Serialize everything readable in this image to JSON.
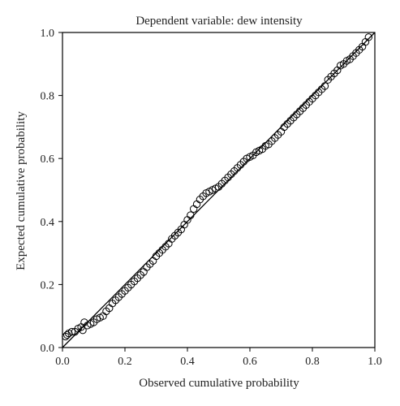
{
  "chart_data": {
    "type": "scatter",
    "title": "Dependent variable: dew intensity",
    "xlabel": "Observed cumulative probability",
    "ylabel": "Expected cumulative probability",
    "xlim": [
      0,
      1
    ],
    "ylim": [
      0,
      1
    ],
    "xticks": [
      "0.0",
      "0.2",
      "0.4",
      "0.6",
      "0.8",
      "1.0"
    ],
    "yticks": [
      "0.0",
      "0.2",
      "0.4",
      "0.6",
      "0.8",
      "1.0"
    ],
    "grid": false,
    "reference_line": [
      [
        0,
        0
      ],
      [
        1,
        1
      ]
    ],
    "series": [
      {
        "marker": "open-circle",
        "color": "#000000",
        "points": [
          [
            0.01,
            0.035
          ],
          [
            0.015,
            0.04
          ],
          [
            0.02,
            0.045
          ],
          [
            0.03,
            0.05
          ],
          [
            0.04,
            0.05
          ],
          [
            0.05,
            0.06
          ],
          [
            0.06,
            0.065
          ],
          [
            0.065,
            0.055
          ],
          [
            0.07,
            0.08
          ],
          [
            0.08,
            0.07
          ],
          [
            0.09,
            0.075
          ],
          [
            0.1,
            0.08
          ],
          [
            0.11,
            0.09
          ],
          [
            0.12,
            0.095
          ],
          [
            0.13,
            0.1
          ],
          [
            0.14,
            0.115
          ],
          [
            0.15,
            0.125
          ],
          [
            0.16,
            0.14
          ],
          [
            0.17,
            0.15
          ],
          [
            0.18,
            0.16
          ],
          [
            0.19,
            0.17
          ],
          [
            0.2,
            0.18
          ],
          [
            0.21,
            0.19
          ],
          [
            0.22,
            0.2
          ],
          [
            0.23,
            0.21
          ],
          [
            0.24,
            0.22
          ],
          [
            0.25,
            0.23
          ],
          [
            0.26,
            0.24
          ],
          [
            0.27,
            0.255
          ],
          [
            0.28,
            0.265
          ],
          [
            0.29,
            0.275
          ],
          [
            0.3,
            0.29
          ],
          [
            0.31,
            0.3
          ],
          [
            0.32,
            0.31
          ],
          [
            0.33,
            0.32
          ],
          [
            0.34,
            0.33
          ],
          [
            0.35,
            0.345
          ],
          [
            0.36,
            0.355
          ],
          [
            0.37,
            0.365
          ],
          [
            0.38,
            0.375
          ],
          [
            0.39,
            0.39
          ],
          [
            0.4,
            0.405
          ],
          [
            0.41,
            0.42
          ],
          [
            0.42,
            0.44
          ],
          [
            0.43,
            0.455
          ],
          [
            0.44,
            0.47
          ],
          [
            0.45,
            0.48
          ],
          [
            0.46,
            0.49
          ],
          [
            0.47,
            0.495
          ],
          [
            0.48,
            0.5
          ],
          [
            0.49,
            0.505
          ],
          [
            0.5,
            0.51
          ],
          [
            0.51,
            0.52
          ],
          [
            0.52,
            0.53
          ],
          [
            0.53,
            0.54
          ],
          [
            0.54,
            0.55
          ],
          [
            0.55,
            0.56
          ],
          [
            0.56,
            0.57
          ],
          [
            0.57,
            0.58
          ],
          [
            0.58,
            0.59
          ],
          [
            0.59,
            0.6
          ],
          [
            0.6,
            0.605
          ],
          [
            0.61,
            0.61
          ],
          [
            0.62,
            0.62
          ],
          [
            0.63,
            0.625
          ],
          [
            0.64,
            0.63
          ],
          [
            0.65,
            0.64
          ],
          [
            0.66,
            0.645
          ],
          [
            0.67,
            0.655
          ],
          [
            0.68,
            0.665
          ],
          [
            0.69,
            0.675
          ],
          [
            0.7,
            0.685
          ],
          [
            0.71,
            0.7
          ],
          [
            0.72,
            0.71
          ],
          [
            0.73,
            0.72
          ],
          [
            0.74,
            0.73
          ],
          [
            0.75,
            0.74
          ],
          [
            0.76,
            0.75
          ],
          [
            0.77,
            0.76
          ],
          [
            0.78,
            0.77
          ],
          [
            0.79,
            0.78
          ],
          [
            0.8,
            0.79
          ],
          [
            0.81,
            0.8
          ],
          [
            0.82,
            0.81
          ],
          [
            0.83,
            0.82
          ],
          [
            0.84,
            0.83
          ],
          [
            0.85,
            0.85
          ],
          [
            0.86,
            0.86
          ],
          [
            0.87,
            0.87
          ],
          [
            0.88,
            0.88
          ],
          [
            0.89,
            0.895
          ],
          [
            0.9,
            0.9
          ],
          [
            0.91,
            0.91
          ],
          [
            0.92,
            0.915
          ],
          [
            0.93,
            0.925
          ],
          [
            0.94,
            0.935
          ],
          [
            0.95,
            0.945
          ],
          [
            0.96,
            0.955
          ],
          [
            0.97,
            0.97
          ],
          [
            0.98,
            0.985
          ]
        ]
      }
    ]
  }
}
